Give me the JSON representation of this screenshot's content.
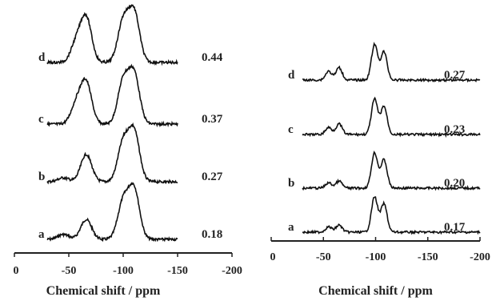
{
  "chart_data": [
    {
      "type": "line",
      "panel": "left",
      "xlabel": "Chemical shift / ppm",
      "xlim": [
        0,
        -200
      ],
      "xticks": [
        "0",
        "-50",
        "-100",
        "-150",
        "-200"
      ],
      "series": [
        {
          "label": "a",
          "value": "0.18",
          "peaks": [
            {
              "x": -45,
              "h": 0.1
            },
            {
              "x": -66,
              "h": 0.4
            },
            {
              "x": -100,
              "h": 0.75
            },
            {
              "x": -110,
              "h": 1.0
            }
          ]
        },
        {
          "label": "b",
          "value": "0.27",
          "peaks": [
            {
              "x": -45,
              "h": 0.08
            },
            {
              "x": -66,
              "h": 0.55
            },
            {
              "x": -100,
              "h": 0.78
            },
            {
              "x": -110,
              "h": 1.0
            }
          ]
        },
        {
          "label": "c",
          "value": "0.37",
          "peaks": [
            {
              "x": -57,
              "h": 0.4
            },
            {
              "x": -66,
              "h": 0.82
            },
            {
              "x": -100,
              "h": 0.85
            },
            {
              "x": -110,
              "h": 1.0
            }
          ]
        },
        {
          "label": "d",
          "value": "0.44",
          "peaks": [
            {
              "x": -57,
              "h": 0.4
            },
            {
              "x": -66,
              "h": 0.88
            },
            {
              "x": -100,
              "h": 0.82
            },
            {
              "x": -110,
              "h": 1.0
            }
          ]
        }
      ]
    },
    {
      "type": "line",
      "panel": "right",
      "xlabel": "Chemical shift / ppm",
      "xlim": [
        0,
        -200
      ],
      "xticks": [
        "0",
        "-50",
        "-100",
        "-150",
        "-200"
      ],
      "series": [
        {
          "label": "a",
          "value": "0.17",
          "peaks": [
            {
              "x": -55,
              "h": 0.15
            },
            {
              "x": -65,
              "h": 0.2
            },
            {
              "x": -99,
              "h": 1.0
            },
            {
              "x": -108,
              "h": 0.8
            }
          ]
        },
        {
          "label": "b",
          "value": "0.20",
          "peaks": [
            {
              "x": -55,
              "h": 0.15
            },
            {
              "x": -65,
              "h": 0.2
            },
            {
              "x": -99,
              "h": 1.0
            },
            {
              "x": -108,
              "h": 0.8
            }
          ]
        },
        {
          "label": "c",
          "value": "0.23",
          "peaks": [
            {
              "x": -55,
              "h": 0.2
            },
            {
              "x": -65,
              "h": 0.3
            },
            {
              "x": -99,
              "h": 1.0
            },
            {
              "x": -108,
              "h": 0.8
            }
          ]
        },
        {
          "label": "d",
          "value": "0.27",
          "peaks": [
            {
              "x": -55,
              "h": 0.25
            },
            {
              "x": -65,
              "h": 0.35
            },
            {
              "x": -99,
              "h": 1.0
            },
            {
              "x": -108,
              "h": 0.8
            }
          ]
        }
      ]
    }
  ]
}
